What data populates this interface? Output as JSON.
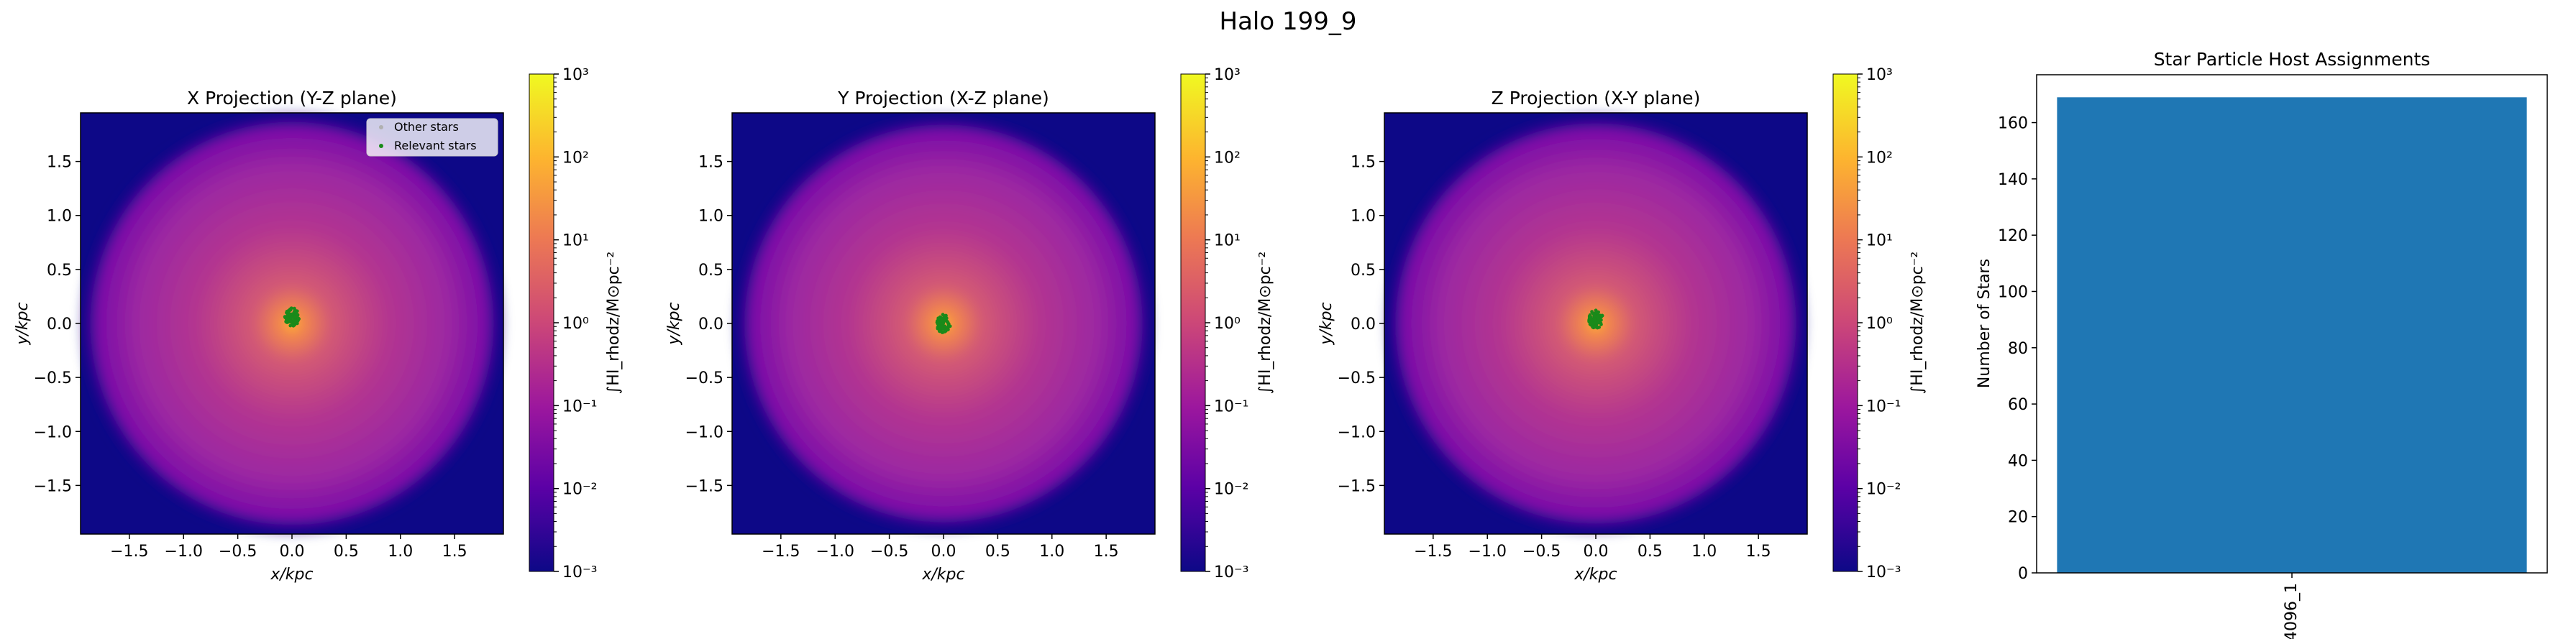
{
  "figure": {
    "title": "Halo 199_9"
  },
  "projection_axes": {
    "xlabel": "x/kpc",
    "ylabel": "y/kpc",
    "xticks": [
      "−1.5",
      "−1.0",
      "−0.5",
      "0.0",
      "0.5",
      "1.0",
      "1.5"
    ],
    "yticks": [
      "1.5",
      "1.0",
      "0.5",
      "0.0",
      "−0.5",
      "−1.0",
      "−1.5"
    ],
    "colorbar_label": "∫HI_rhodz/M⊙pc⁻²",
    "colorbar_ticks": [
      "10³",
      "10²",
      "10¹",
      "10⁰",
      "10⁻¹",
      "10⁻²",
      "10⁻³"
    ],
    "colormap": [
      "#0d0887",
      "#5c01a6",
      "#9c179e",
      "#cc4778",
      "#ed7953",
      "#fdb42f",
      "#f0f921"
    ],
    "star_color": "#1a8a1a",
    "legend": {
      "other": "Other stars",
      "relevant": "Relevant stars"
    }
  },
  "panels": [
    {
      "title": "X Projection (Y-Z plane)",
      "has_legend": true
    },
    {
      "title": "Y Projection (X-Z plane)",
      "has_legend": false
    },
    {
      "title": "Z Projection (X-Y plane)",
      "has_legend": false
    }
  ],
  "chart_data": [
    {
      "type": "heatmap",
      "title": "X Projection (Y-Z plane)",
      "xlabel": "x/kpc",
      "ylabel": "y/kpc",
      "xlim": [
        -1.95,
        1.95
      ],
      "ylim": [
        -1.95,
        1.95
      ],
      "colorbar": {
        "scale": "log",
        "range": [
          0.001,
          1000
        ]
      },
      "legend": [
        "Other stars",
        "Relevant stars"
      ],
      "legend_position": "upper right"
    },
    {
      "type": "heatmap",
      "title": "Y Projection (X-Z plane)",
      "xlabel": "x/kpc",
      "ylabel": "y/kpc",
      "xlim": [
        -1.95,
        1.95
      ],
      "ylim": [
        -1.95,
        1.95
      ],
      "colorbar": {
        "scale": "log",
        "range": [
          0.001,
          1000
        ]
      }
    },
    {
      "type": "heatmap",
      "title": "Z Projection (X-Y plane)",
      "xlabel": "x/kpc",
      "ylabel": "y/kpc",
      "xlim": [
        -1.95,
        1.95
      ],
      "ylim": [
        -1.95,
        1.95
      ],
      "colorbar": {
        "scale": "log",
        "range": [
          0.001,
          1000
        ]
      }
    },
    {
      "type": "bar",
      "title": "Star Particle Host Assignments",
      "ylabel": "Number of Stars",
      "categories": [
        "4096_1"
      ],
      "values": [
        169
      ],
      "ylim": [
        0,
        177
      ],
      "yticks": [
        0,
        20,
        40,
        60,
        80,
        100,
        120,
        140,
        160
      ],
      "color": "#1f77b4"
    }
  ]
}
